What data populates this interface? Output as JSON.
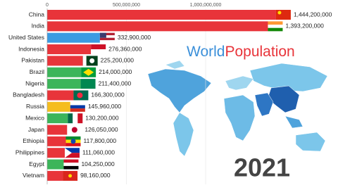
{
  "chart_data": {
    "type": "bar",
    "orientation": "horizontal",
    "title_parts": [
      "World",
      "Population"
    ],
    "annotation": "2021",
    "categories": [
      "China",
      "India",
      "United States",
      "Indonesia",
      "Pakistan",
      "Brazil",
      "Nigeria",
      "Bangladesh",
      "Russia",
      "Mexico",
      "Japan",
      "Ethiopia",
      "Philippines",
      "Egypt",
      "Vietnam"
    ],
    "values": [
      1444200000,
      1393200000,
      332900000,
      276360000,
      225200000,
      214000000,
      211400000,
      166300000,
      145960000,
      130200000,
      126050000,
      117800000,
      111060000,
      104250000,
      98160000
    ],
    "value_labels": [
      "1,444,200,000",
      "1,393,200,000",
      "332,900,000",
      "276,360,000",
      "225,200,000",
      "214,000,000",
      "211,400,000",
      "166,300,000",
      "145,960,000",
      "130,200,000",
      "126,050,000",
      "117,800,000",
      "111,060,000",
      "104,250,000",
      "98,160,000"
    ],
    "colors": [
      "#e8343a",
      "#e8343a",
      "#3b9be2",
      "#e8343a",
      "#e8343a",
      "#3cb55a",
      "#3cb55a",
      "#e8343a",
      "#f5bd1f",
      "#3cb55a",
      "#e8343a",
      "#e8343a",
      "#e8343a",
      "#3cb55a",
      "#e8343a"
    ],
    "xlim": [
      0,
      1500000000
    ],
    "xticks": [
      0,
      {
        "value": 500000000,
        "label": "500,000,000"
      },
      {
        "value": 1000000000,
        "label": "1,000,000,000"
      }
    ],
    "grid": true
  }
}
